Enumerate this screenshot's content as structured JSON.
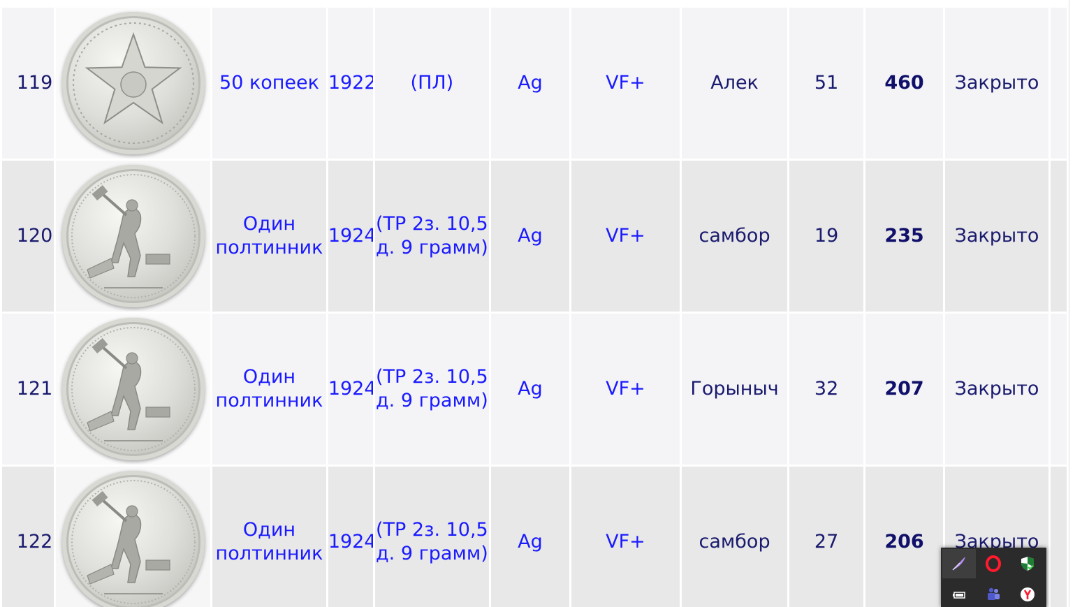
{
  "rows": [
    {
      "num": "119",
      "name": "50 копеек",
      "year": "1922",
      "variant": "(ПЛ)",
      "metal": "Ag",
      "grade": "VF+",
      "author": "Алек",
      "bids": "51",
      "price": "460",
      "status": "Закрыто",
      "coin": "star-50-kopeek-coin"
    },
    {
      "num": "120",
      "name": "Один полтинник",
      "year": "1924",
      "variant": "(ТР 2з. 10,5 д. 9 грамм)",
      "metal": "Ag",
      "grade": "VF+",
      "author": "самбор",
      "bids": "19",
      "price": "235",
      "status": "Закрыто",
      "coin": "poltinnik-smith-coin"
    },
    {
      "num": "121",
      "name": "Один полтинник",
      "year": "1924",
      "variant": "(ТР 2з. 10,5 д. 9 грамм)",
      "metal": "Ag",
      "grade": "VF+",
      "author": "Горыныч",
      "bids": "32",
      "price": "207",
      "status": "Закрыто",
      "coin": "poltinnik-smith-coin"
    },
    {
      "num": "122",
      "name": "Один полтинник",
      "year": "1924",
      "variant": "(ТР 2з. 10,5 д. 9 грамм)",
      "metal": "Ag",
      "grade": "VF+",
      "author": "самбор",
      "bids": "27",
      "price": "206",
      "status": "Закрыто",
      "coin": "poltinnik-smith-coin"
    }
  ],
  "tray": {
    "icons": [
      "feather-pen-icon",
      "opera-icon",
      "security-shield-icon",
      "battery-device-icon",
      "teams-icon",
      "yandex-browser-icon"
    ]
  },
  "colors": {
    "link": "#1a1aff",
    "text_dark": "#1a1a6e",
    "row_light": "#f4f4f7",
    "row_gray": "#e8e8e8",
    "tray_bg": "#2b2b2b"
  }
}
